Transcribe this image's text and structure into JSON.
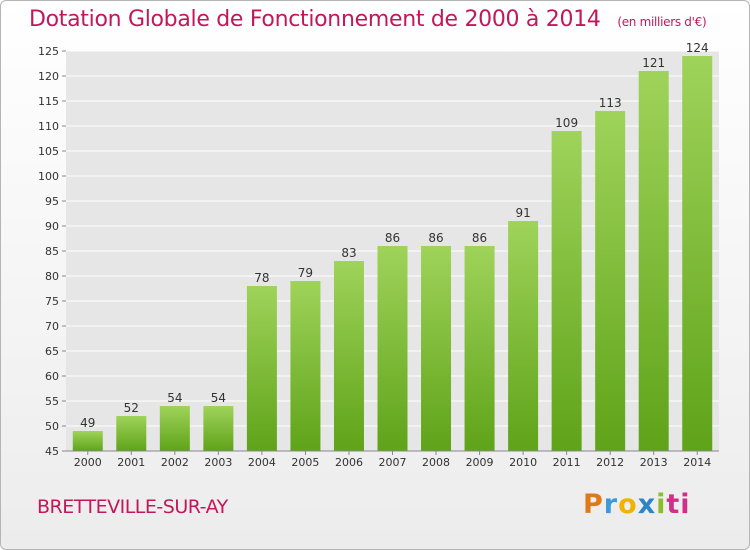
{
  "chart_data": {
    "type": "bar",
    "title": "Dotation Globale de Fonctionnement de 2000 à 2014",
    "subtitle": "(en milliers d'€)",
    "categories": [
      "2000",
      "2001",
      "2002",
      "2003",
      "2004",
      "2005",
      "2006",
      "2007",
      "2008",
      "2009",
      "2010",
      "2011",
      "2012",
      "2013",
      "2014"
    ],
    "values": [
      49,
      52,
      54,
      54,
      78,
      79,
      83,
      86,
      86,
      86,
      91,
      109,
      113,
      121,
      124
    ],
    "ylim": [
      45,
      125
    ],
    "yticks": [
      45,
      50,
      55,
      60,
      65,
      70,
      75,
      80,
      85,
      90,
      95,
      100,
      105,
      110,
      115,
      120,
      125
    ],
    "grid": true,
    "legend": "none",
    "colors": {
      "bar_top": "#9fd35a",
      "bar_bottom": "#5fa319",
      "grid": "#ffffff"
    }
  },
  "commune": "BRETTEVILLE-SUR-AY",
  "logo": {
    "letters": [
      "P",
      "r",
      "o",
      "x",
      "i",
      "ti"
    ]
  }
}
